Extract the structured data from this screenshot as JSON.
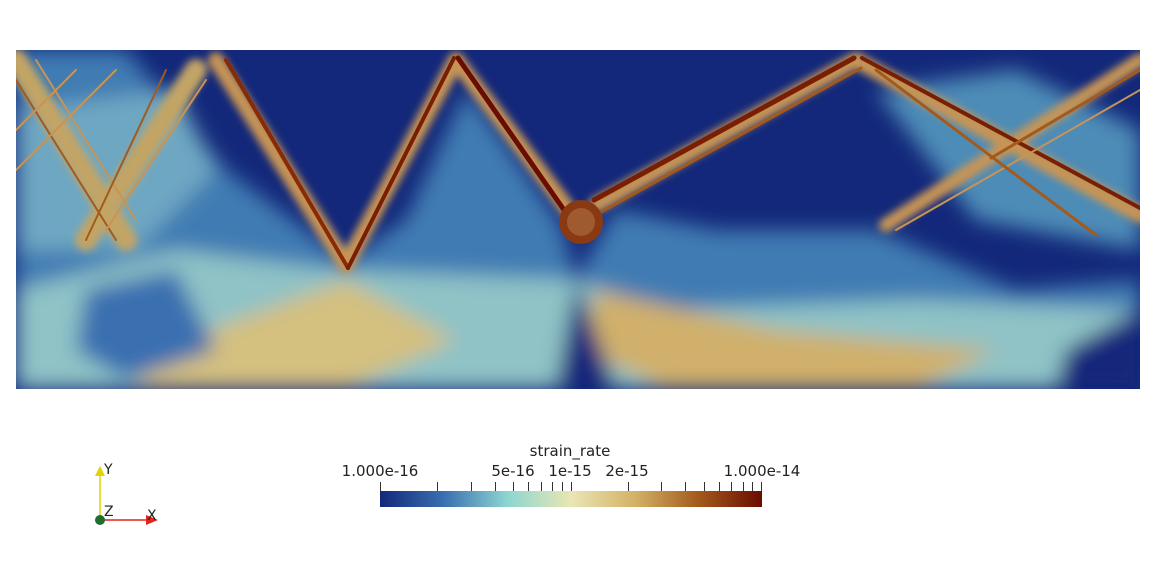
{
  "field": {
    "name": "strain_rate"
  },
  "colorbar": {
    "title": "strain_rate",
    "scale": "log",
    "range": [
      1e-16,
      1e-14
    ],
    "labels": [
      "1.000e-16",
      "5e-16",
      "1e-15",
      "2e-15",
      "1.000e-14"
    ],
    "colormap_colors": [
      "#13287a",
      "#3a6fb0",
      "#8dd6d0",
      "#e9e6b4",
      "#d3b266",
      "#a35a1c",
      "#6a0c00"
    ]
  },
  "axes": {
    "x_label": "X",
    "y_label": "Y",
    "z_label": "Z",
    "x_color": "#e0241c",
    "y_color": "#e2d400",
    "z_color": "#1f6e2f"
  }
}
